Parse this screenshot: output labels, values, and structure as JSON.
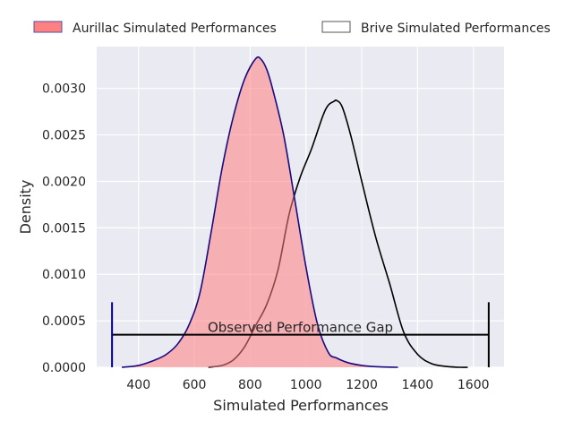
{
  "chart_data": {
    "type": "area",
    "title": "",
    "xlabel": "Simulated Performances",
    "ylabel": "Density",
    "xlim": [
      250,
      1710
    ],
    "ylim": [
      0,
      0.00345
    ],
    "xticks": [
      400,
      600,
      800,
      1000,
      1200,
      1400,
      1600
    ],
    "yticks": [
      0,
      0.0005,
      0.001,
      0.0015,
      0.002,
      0.0025,
      0.003
    ],
    "xtick_labels": [
      "400",
      "600",
      "800",
      "1000",
      "1200",
      "1400",
      "1600"
    ],
    "ytick_labels": [
      "0.0000",
      "0.0005",
      "0.0010",
      "0.0015",
      "0.0020",
      "0.0025",
      "0.0030"
    ],
    "grid": true,
    "legend_position": "top, above plot",
    "series": [
      {
        "name": "Aurillac Simulated Performances",
        "fill": "#ff8080",
        "edge": "#1a0a80",
        "x": [
          340,
          400,
          460,
          500,
          540,
          580,
          620,
          660,
          700,
          740,
          780,
          820,
          840,
          860,
          880,
          920,
          960,
          1000,
          1040,
          1080,
          1110,
          1150,
          1200,
          1260,
          1330
        ],
        "y": [
          0,
          2e-05,
          8e-05,
          0.00014,
          0.00025,
          0.00045,
          0.0008,
          0.00145,
          0.00215,
          0.0027,
          0.0031,
          0.00332,
          0.00331,
          0.0032,
          0.003,
          0.0025,
          0.0018,
          0.00108,
          0.00048,
          0.00016,
          0.0001,
          5e-05,
          2e-05,
          5e-06,
          0
        ]
      },
      {
        "name": "Brive Simulated Performances",
        "fill": "#eaeaf2",
        "edge": "#000000",
        "x": [
          650,
          700,
          740,
          780,
          820,
          860,
          900,
          940,
          980,
          1020,
          1060,
          1080,
          1100,
          1110,
          1130,
          1160,
          1200,
          1250,
          1300,
          1350,
          1400,
          1450,
          1500,
          1550,
          1580
        ],
        "y": [
          0,
          2e-05,
          8e-05,
          0.00022,
          0.00045,
          0.00068,
          0.00105,
          0.00165,
          0.00205,
          0.00235,
          0.0027,
          0.00282,
          0.00286,
          0.00287,
          0.0028,
          0.0025,
          0.002,
          0.0014,
          0.0009,
          0.00038,
          0.00014,
          4e-05,
          1e-05,
          0,
          0
        ]
      }
    ],
    "annotations": [
      {
        "text": "Observed Performance Gap",
        "x_start": 305,
        "x_end": 1655,
        "y": 0.00035,
        "cap_top": 0.0007,
        "left_color": "#00008b",
        "right_color": "#000000"
      }
    ]
  }
}
